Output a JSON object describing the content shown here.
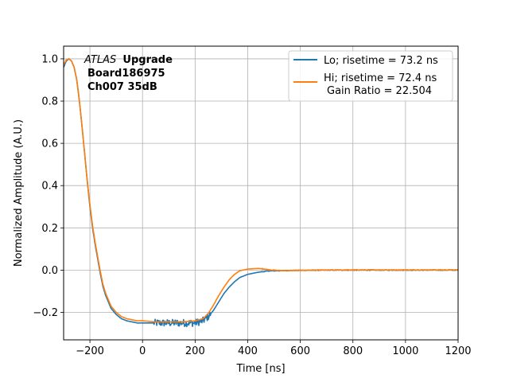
{
  "chart_data": {
    "type": "line",
    "xlabel": "Time [ns]",
    "ylabel": "Normalized Amplitude (A.U.)",
    "xlim": [
      -300,
      1200
    ],
    "ylim": [
      -0.33,
      1.06
    ],
    "xticks": [
      -200,
      0,
      200,
      400,
      600,
      800,
      1000,
      1200
    ],
    "xtick_labels": [
      "−200",
      "0",
      "200",
      "400",
      "600",
      "800",
      "1000",
      "1200"
    ],
    "yticks": [
      -0.2,
      0.0,
      0.2,
      0.4,
      0.6,
      0.8,
      1.0
    ],
    "ytick_labels": [
      "−0.2",
      "0.0",
      "0.2",
      "0.4",
      "0.6",
      "0.8",
      "1.0"
    ],
    "grid": true,
    "legend_position": "top-right",
    "annotation": {
      "line1_italic": "ATLAS",
      "line1_bold": "Upgrade",
      "line2": "Board186975",
      "line3": "Ch007 35dB"
    },
    "series": [
      {
        "name": "Lo; risetime = 73.2 ns",
        "color": "#1f77b4",
        "noisy": true,
        "x": [
          -300,
          -290,
          -280,
          -270,
          -260,
          -250,
          -240,
          -230,
          -220,
          -210,
          -200,
          -190,
          -180,
          -170,
          -160,
          -150,
          -140,
          -130,
          -120,
          -100,
          -80,
          -60,
          -40,
          -20,
          0,
          50,
          100,
          150,
          200,
          230,
          250,
          270,
          290,
          310,
          330,
          350,
          370,
          400,
          440,
          480,
          520,
          560,
          600,
          700,
          800,
          900,
          1000,
          1100,
          1200
        ],
        "y": [
          0.96,
          0.99,
          1.0,
          0.99,
          0.96,
          0.9,
          0.8,
          0.68,
          0.55,
          0.42,
          0.3,
          0.2,
          0.12,
          0.05,
          -0.02,
          -0.08,
          -0.12,
          -0.15,
          -0.18,
          -0.21,
          -0.23,
          -0.24,
          -0.245,
          -0.25,
          -0.25,
          -0.25,
          -0.25,
          -0.25,
          -0.25,
          -0.24,
          -0.22,
          -0.19,
          -0.15,
          -0.11,
          -0.08,
          -0.055,
          -0.035,
          -0.02,
          -0.01,
          -0.004,
          -0.003,
          -0.002,
          -0.001,
          0.0,
          0.0,
          0.0,
          0.0,
          0.0,
          0.0
        ]
      },
      {
        "name": "Hi; risetime = 72.4 ns",
        "name_line2": "Gain Ratio = 22.504",
        "color": "#ff7f0e",
        "noisy": false,
        "x": [
          -300,
          -290,
          -280,
          -270,
          -260,
          -250,
          -240,
          -230,
          -220,
          -210,
          -200,
          -190,
          -180,
          -170,
          -160,
          -150,
          -140,
          -130,
          -120,
          -100,
          -80,
          -60,
          -40,
          -20,
          0,
          50,
          100,
          150,
          200,
          230,
          250,
          270,
          290,
          310,
          330,
          350,
          370,
          400,
          440,
          460,
          480,
          520,
          560,
          600,
          700,
          800,
          900,
          1000,
          1100,
          1200
        ],
        "y": [
          0.97,
          0.995,
          1.0,
          0.99,
          0.96,
          0.9,
          0.8,
          0.68,
          0.55,
          0.42,
          0.31,
          0.21,
          0.13,
          0.06,
          -0.01,
          -0.07,
          -0.11,
          -0.14,
          -0.17,
          -0.2,
          -0.22,
          -0.23,
          -0.235,
          -0.24,
          -0.24,
          -0.245,
          -0.245,
          -0.245,
          -0.24,
          -0.23,
          -0.205,
          -0.165,
          -0.12,
          -0.08,
          -0.045,
          -0.02,
          -0.003,
          0.005,
          0.008,
          0.006,
          0.002,
          -0.002,
          -0.002,
          -0.001,
          0.0,
          0.001,
          0.001,
          0.001,
          0.001,
          0.001
        ]
      }
    ]
  }
}
